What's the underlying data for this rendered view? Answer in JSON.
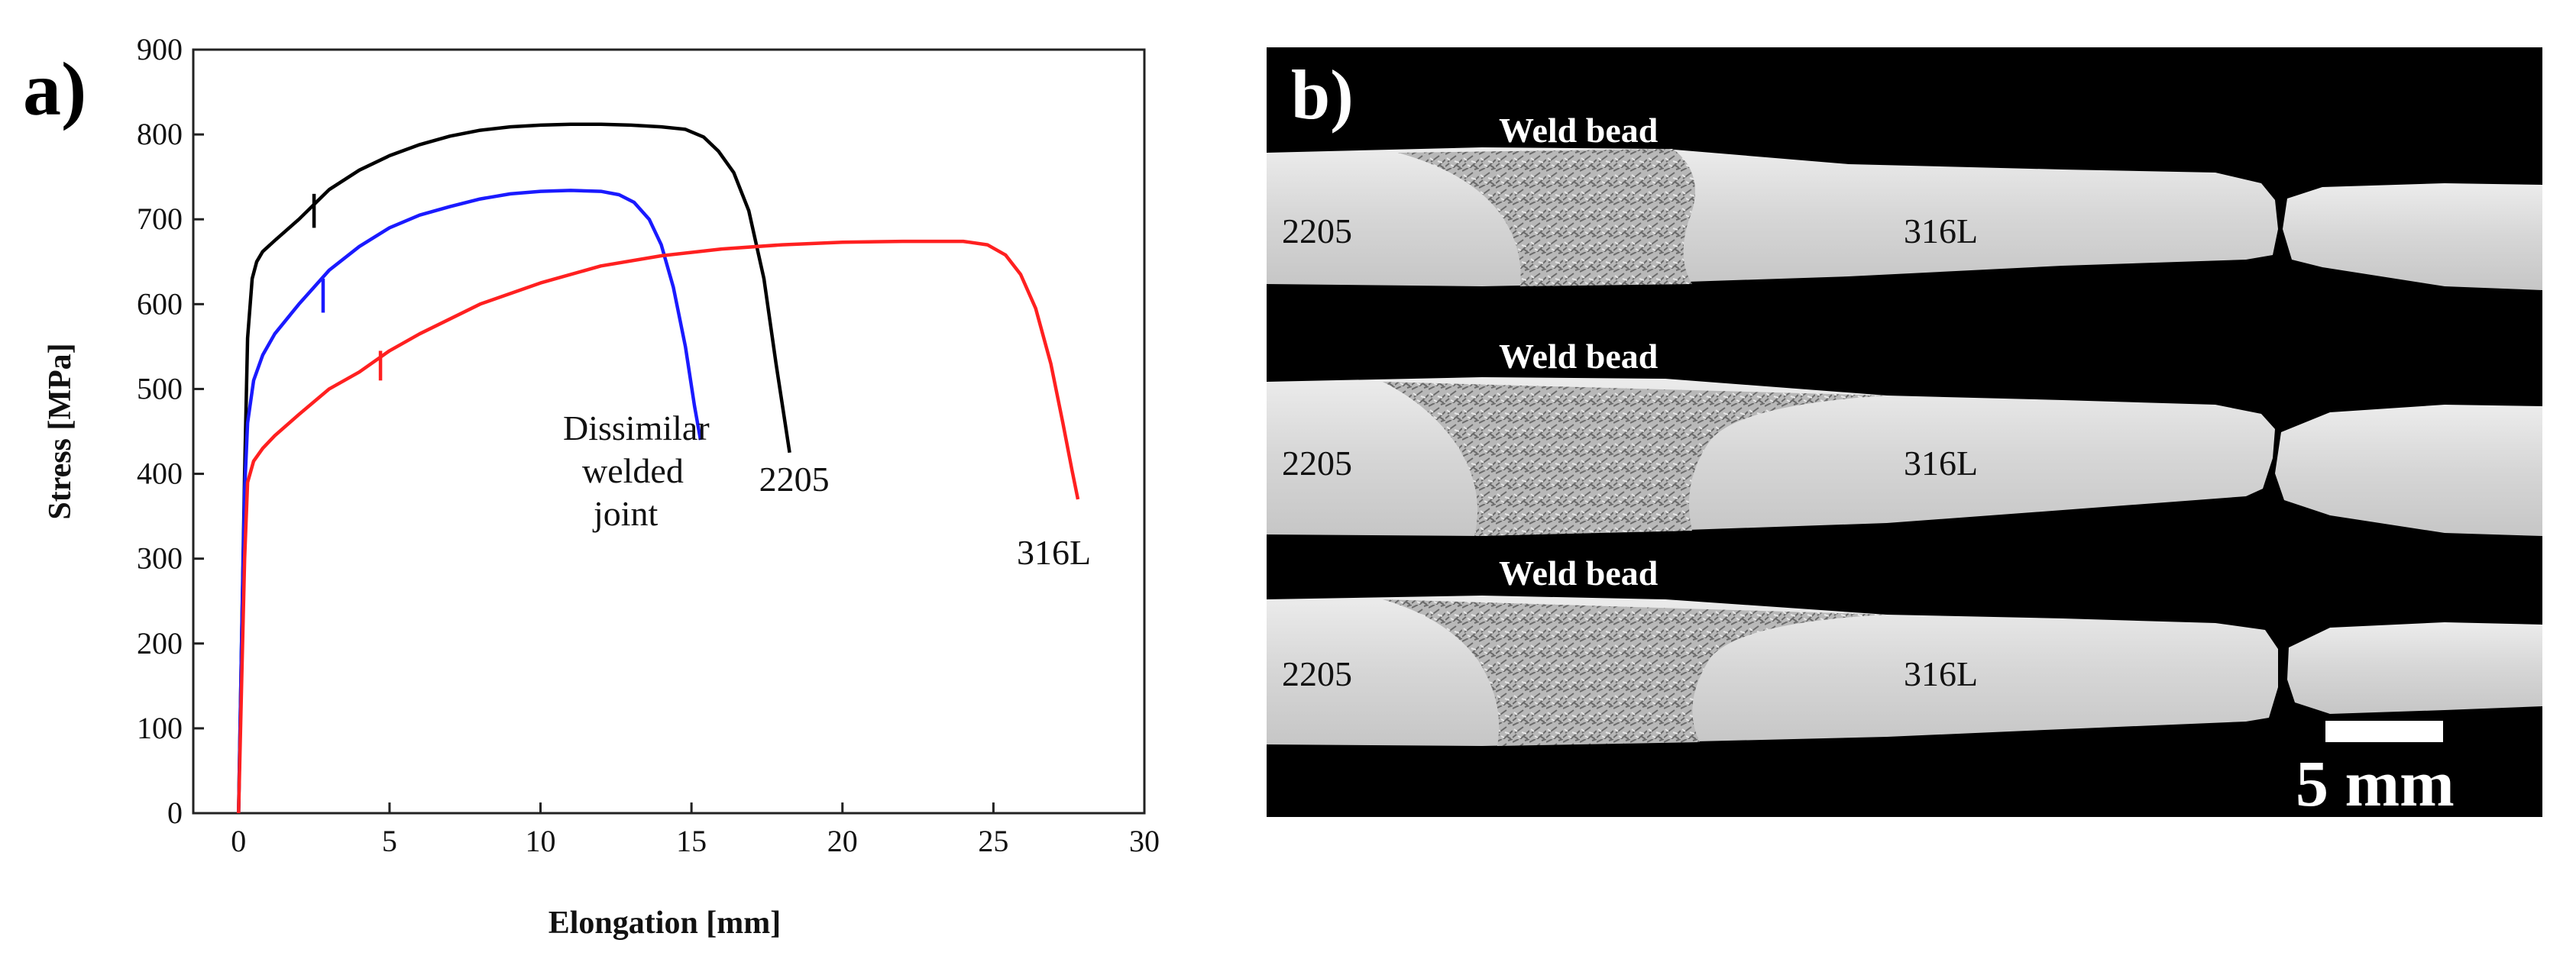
{
  "panel_a": {
    "label": "a)"
  },
  "panel_b": {
    "label": "b)",
    "scale_bar_label": "5 mm",
    "specimens": [
      {
        "weld_label": "Weld bead",
        "left_label": "2205",
        "right_label": "316L"
      },
      {
        "weld_label": "Weld bead",
        "left_label": "2205",
        "right_label": "316L"
      },
      {
        "weld_label": "Weld bead",
        "left_label": "2205",
        "right_label": "316L"
      }
    ]
  },
  "chart_data": {
    "type": "line",
    "xlabel": "Elongation [mm]",
    "ylabel": "Stress [MPa]",
    "xlim": [
      -1.5,
      30
    ],
    "ylim": [
      0,
      900
    ],
    "xticks": [
      0,
      5,
      10,
      15,
      20,
      25,
      30
    ],
    "yticks": [
      0,
      100,
      200,
      300,
      400,
      500,
      600,
      700,
      800,
      900
    ],
    "grid": false,
    "series": [
      {
        "name": "2205",
        "color": "#000000",
        "x": [
          0.0,
          0.1,
          0.2,
          0.3,
          0.45,
          0.6,
          0.8,
          1.2,
          2.0,
          3.0,
          4.0,
          5.0,
          6.0,
          7.0,
          8.0,
          9.0,
          10.0,
          11.0,
          12.0,
          13.0,
          14.0,
          14.8,
          15.4,
          15.9,
          16.4,
          16.9,
          17.4,
          17.8,
          18.1,
          18.25
        ],
        "y": [
          0,
          200,
          400,
          560,
          630,
          650,
          662,
          675,
          700,
          735,
          758,
          775,
          788,
          798,
          805,
          809,
          811,
          812,
          812,
          811,
          809,
          806,
          797,
          780,
          755,
          710,
          630,
          530,
          460,
          425
        ],
        "artifacts": [
          {
            "x": 2.5,
            "y_top": 730,
            "y_bottom": 690
          }
        ]
      },
      {
        "name": "Dissimilar welded joint",
        "color": "#1a1aff",
        "x": [
          0.0,
          0.1,
          0.2,
          0.3,
          0.5,
          0.8,
          1.2,
          2.0,
          3.0,
          4.0,
          5.0,
          6.0,
          7.0,
          8.0,
          9.0,
          10.0,
          11.0,
          12.0,
          12.6,
          13.1,
          13.6,
          14.0,
          14.4,
          14.8,
          15.1,
          15.3
        ],
        "y": [
          0,
          200,
          380,
          460,
          510,
          540,
          565,
          600,
          640,
          668,
          690,
          705,
          715,
          724,
          730,
          733,
          734,
          733,
          729,
          720,
          700,
          670,
          620,
          550,
          480,
          440
        ],
        "artifacts": [
          {
            "x": 2.8,
            "y_top": 630,
            "y_bottom": 590
          }
        ]
      },
      {
        "name": "316L",
        "color": "#ff2020",
        "x": [
          0.0,
          0.1,
          0.2,
          0.3,
          0.5,
          0.8,
          1.2,
          2.0,
          3.0,
          4.0,
          5.0,
          6.0,
          8.0,
          10.0,
          12.0,
          14.0,
          16.0,
          18.0,
          20.0,
          22.0,
          24.0,
          24.8,
          25.4,
          25.9,
          26.4,
          26.9,
          27.3,
          27.6,
          27.8
        ],
        "y": [
          0,
          150,
          300,
          390,
          415,
          430,
          445,
          470,
          500,
          520,
          545,
          565,
          600,
          625,
          645,
          657,
          665,
          670,
          673,
          674,
          674,
          670,
          658,
          635,
          595,
          530,
          460,
          405,
          370
        ],
        "artifacts": [
          {
            "x": 4.7,
            "y_top": 545,
            "y_bottom": 510
          }
        ]
      }
    ],
    "annotations": [
      {
        "text_lines": [
          "Dissimilar",
          "welded",
          "joint"
        ],
        "series": "Dissimilar welded joint"
      },
      {
        "text_lines": [
          "2205"
        ],
        "series": "2205"
      },
      {
        "text_lines": [
          "316L"
        ],
        "series": "316L"
      }
    ]
  }
}
